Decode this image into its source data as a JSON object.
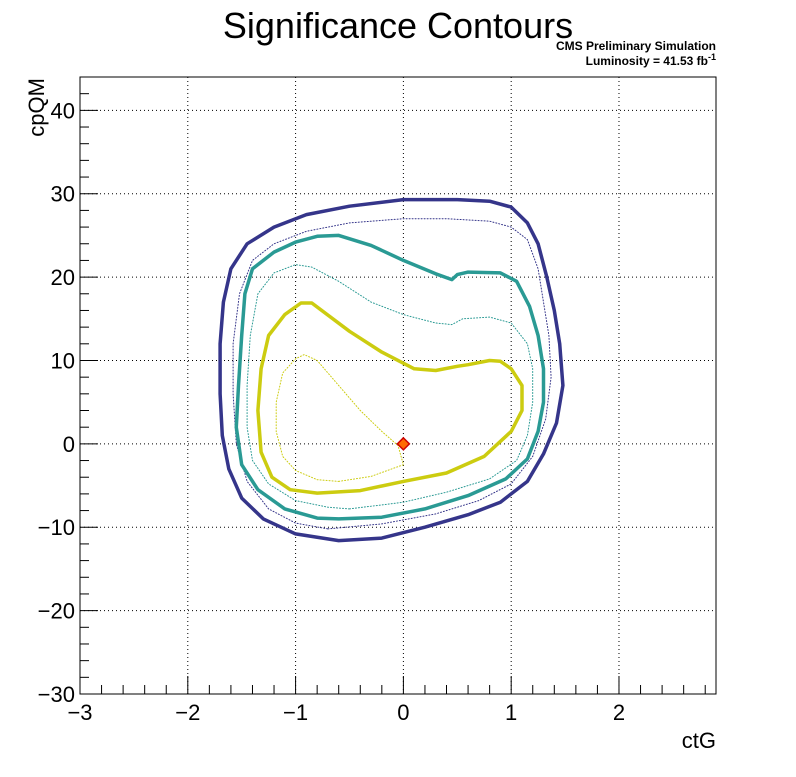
{
  "chart_data": {
    "type": "line",
    "title": "Significance Contours",
    "subtitle_line1": "CMS Preliminary Simulation",
    "subtitle_line2_text": "Luminosity = 41.53 fb",
    "subtitle_line2_sup": "-1",
    "xlabel": "ctG",
    "ylabel": "cpQM",
    "xlim": [
      -3,
      2.9
    ],
    "ylim": [
      -30,
      44
    ],
    "x_ticks": [
      -3,
      -2,
      -1,
      0,
      1,
      2
    ],
    "x_tick_labels": [
      "−3",
      "−2",
      "−1",
      "0",
      "1",
      "2"
    ],
    "y_ticks": [
      -30,
      -20,
      -10,
      0,
      10,
      20,
      30,
      40
    ],
    "y_tick_labels": [
      "−30",
      "−20",
      "−10",
      "0",
      "10",
      "20",
      "30",
      "40"
    ],
    "grid": true,
    "colors": {
      "outer": "#35358a",
      "middle": "#2a9a94",
      "inner": "#cccc10",
      "marker_fill": "#ff6a00",
      "marker_stroke": "#cc0000",
      "axis": "#000000"
    },
    "series": [
      {
        "id": "outer-solid",
        "style": "solid",
        "color": "#35358a",
        "points": [
          [
            -0.6,
            -11.6
          ],
          [
            -0.2,
            -11.3
          ],
          [
            0.2,
            -10.0
          ],
          [
            0.6,
            -8.5
          ],
          [
            0.9,
            -7.0
          ],
          [
            1.15,
            -4.5
          ],
          [
            1.3,
            -1.2
          ],
          [
            1.42,
            2.5
          ],
          [
            1.48,
            7.0
          ],
          [
            1.45,
            12.0
          ],
          [
            1.4,
            16.0
          ],
          [
            1.33,
            20.0
          ],
          [
            1.25,
            24.0
          ],
          [
            1.15,
            26.5
          ],
          [
            1.0,
            28.4
          ],
          [
            0.8,
            29.1
          ],
          [
            0.5,
            29.3
          ],
          [
            0.0,
            29.3
          ],
          [
            -0.5,
            28.5
          ],
          [
            -0.9,
            27.5
          ],
          [
            -1.2,
            26.0
          ],
          [
            -1.45,
            24.0
          ],
          [
            -1.6,
            21.0
          ],
          [
            -1.67,
            17.0
          ],
          [
            -1.7,
            12.0
          ],
          [
            -1.7,
            6.0
          ],
          [
            -1.68,
            1.0
          ],
          [
            -1.62,
            -3.0
          ],
          [
            -1.5,
            -6.5
          ],
          [
            -1.3,
            -9.0
          ],
          [
            -1.0,
            -10.8
          ],
          [
            -0.6,
            -11.6
          ]
        ]
      },
      {
        "id": "outer-dotted",
        "style": "dotted",
        "color": "#35358a",
        "points": [
          [
            -0.7,
            -10.2
          ],
          [
            -0.2,
            -9.6
          ],
          [
            0.3,
            -8.4
          ],
          [
            0.7,
            -6.8
          ],
          [
            1.0,
            -4.8
          ],
          [
            1.2,
            -1.5
          ],
          [
            1.32,
            3.0
          ],
          [
            1.37,
            8.0
          ],
          [
            1.35,
            13.0
          ],
          [
            1.3,
            17.0
          ],
          [
            1.25,
            21.0
          ],
          [
            1.15,
            24.5
          ],
          [
            1.0,
            26.0
          ],
          [
            0.8,
            26.7
          ],
          [
            0.4,
            27.0
          ],
          [
            0.0,
            27.0
          ],
          [
            -0.5,
            26.5
          ],
          [
            -0.9,
            25.5
          ],
          [
            -1.2,
            24.0
          ],
          [
            -1.4,
            22.0
          ],
          [
            -1.52,
            18.0
          ],
          [
            -1.58,
            12.0
          ],
          [
            -1.58,
            6.0
          ],
          [
            -1.55,
            0.0
          ],
          [
            -1.45,
            -4.5
          ],
          [
            -1.25,
            -7.8
          ],
          [
            -1.0,
            -9.5
          ],
          [
            -0.7,
            -10.2
          ]
        ]
      },
      {
        "id": "middle-solid",
        "style": "solid",
        "color": "#2a9a94",
        "points": [
          [
            -0.6,
            -9.0
          ],
          [
            -0.2,
            -8.8
          ],
          [
            0.2,
            -7.8
          ],
          [
            0.6,
            -6.2
          ],
          [
            0.95,
            -4.2
          ],
          [
            1.15,
            -1.8
          ],
          [
            1.25,
            1.5
          ],
          [
            1.3,
            5.0
          ],
          [
            1.3,
            9.0
          ],
          [
            1.25,
            13.0
          ],
          [
            1.17,
            16.5
          ],
          [
            1.05,
            19.5
          ],
          [
            0.9,
            20.5
          ],
          [
            0.6,
            20.6
          ],
          [
            0.5,
            20.3
          ],
          [
            0.45,
            19.7
          ],
          [
            0.3,
            20.4
          ],
          [
            0.0,
            22.0
          ],
          [
            -0.3,
            23.8
          ],
          [
            -0.6,
            25.0
          ],
          [
            -0.8,
            24.9
          ],
          [
            -1.0,
            24.2
          ],
          [
            -1.2,
            23.0
          ],
          [
            -1.4,
            21.0
          ],
          [
            -1.47,
            18.0
          ],
          [
            -1.5,
            13.0
          ],
          [
            -1.53,
            7.0
          ],
          [
            -1.55,
            2.0
          ],
          [
            -1.5,
            -2.5
          ],
          [
            -1.35,
            -5.5
          ],
          [
            -1.1,
            -7.8
          ],
          [
            -0.8,
            -8.9
          ],
          [
            -0.6,
            -9.0
          ]
        ]
      },
      {
        "id": "middle-dotted",
        "style": "dotted",
        "color": "#2a9a94",
        "points": [
          [
            -0.5,
            -7.8
          ],
          [
            0.0,
            -7.0
          ],
          [
            0.4,
            -5.8
          ],
          [
            0.8,
            -4.2
          ],
          [
            1.05,
            -2.0
          ],
          [
            1.15,
            1.0
          ],
          [
            1.2,
            5.0
          ],
          [
            1.2,
            9.0
          ],
          [
            1.15,
            12.0
          ],
          [
            1.0,
            14.5
          ],
          [
            0.8,
            15.2
          ],
          [
            0.55,
            15.0
          ],
          [
            0.45,
            14.3
          ],
          [
            0.3,
            14.5
          ],
          [
            0.0,
            15.5
          ],
          [
            -0.3,
            17.0
          ],
          [
            -0.6,
            19.5
          ],
          [
            -0.85,
            21.2
          ],
          [
            -1.0,
            21.5
          ],
          [
            -1.2,
            20.5
          ],
          [
            -1.35,
            18.0
          ],
          [
            -1.42,
            13.0
          ],
          [
            -1.45,
            7.0
          ],
          [
            -1.45,
            2.0
          ],
          [
            -1.4,
            -2.0
          ],
          [
            -1.25,
            -4.8
          ],
          [
            -1.0,
            -6.8
          ],
          [
            -0.7,
            -7.6
          ],
          [
            -0.5,
            -7.8
          ]
        ]
      },
      {
        "id": "inner-solid",
        "style": "solid",
        "color": "#cccc10",
        "points": [
          [
            -0.8,
            -5.9
          ],
          [
            -0.4,
            -5.6
          ],
          [
            0.0,
            -4.5
          ],
          [
            0.4,
            -3.5
          ],
          [
            0.75,
            -1.5
          ],
          [
            1.0,
            1.5
          ],
          [
            1.1,
            4.0
          ],
          [
            1.1,
            7.0
          ],
          [
            1.0,
            9.0
          ],
          [
            0.9,
            9.9
          ],
          [
            0.8,
            10.0
          ],
          [
            0.6,
            9.5
          ],
          [
            0.5,
            9.3
          ],
          [
            0.3,
            8.8
          ],
          [
            0.1,
            9.0
          ],
          [
            -0.2,
            11.0
          ],
          [
            -0.5,
            13.5
          ],
          [
            -0.85,
            16.9
          ],
          [
            -0.95,
            16.9
          ],
          [
            -1.1,
            15.5
          ],
          [
            -1.25,
            13.0
          ],
          [
            -1.32,
            9.0
          ],
          [
            -1.35,
            4.0
          ],
          [
            -1.32,
            -1.0
          ],
          [
            -1.22,
            -4.0
          ],
          [
            -1.05,
            -5.5
          ],
          [
            -0.8,
            -5.9
          ]
        ]
      },
      {
        "id": "inner-dotted",
        "style": "dotted",
        "color": "#cccc10",
        "points": [
          [
            -0.6,
            -4.5
          ],
          [
            -0.3,
            -3.9
          ],
          [
            0.0,
            -2.5
          ],
          [
            -0.05,
            -0.2
          ],
          [
            -0.2,
            1.5
          ],
          [
            -0.4,
            4.0
          ],
          [
            -0.6,
            7.0
          ],
          [
            -0.8,
            10.0
          ],
          [
            -0.92,
            10.7
          ],
          [
            -1.0,
            10.2
          ],
          [
            -1.12,
            8.5
          ],
          [
            -1.18,
            5.0
          ],
          [
            -1.18,
            1.5
          ],
          [
            -1.12,
            -1.5
          ],
          [
            -1.0,
            -3.2
          ],
          [
            -0.8,
            -4.3
          ],
          [
            -0.6,
            -4.5
          ]
        ]
      }
    ],
    "marker": {
      "x": 0,
      "y": 0,
      "shape": "diamond"
    }
  }
}
